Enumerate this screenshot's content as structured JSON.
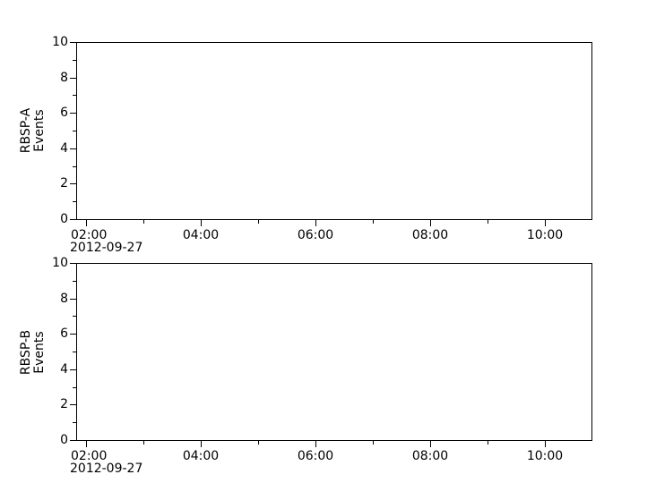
{
  "figure": {
    "background": "#ffffff",
    "axis_color": "#000000",
    "text_color": "#000000"
  },
  "chart_data": [
    {
      "type": "line",
      "title": "",
      "ylabel": "RBSP-A Events",
      "ylabel_lines": [
        "RBSP-A",
        "Events"
      ],
      "series": [],
      "x": {
        "date": "2012-09-27",
        "lim_min": [
          110,
          650
        ],
        "lim_label": [
          "01:50",
          "10:50"
        ],
        "major": [
          {
            "m": 120,
            "label": "02:00"
          },
          {
            "m": 240,
            "label": "04:00"
          },
          {
            "m": 360,
            "label": "06:00"
          },
          {
            "m": 480,
            "label": "08:00"
          },
          {
            "m": 600,
            "label": "10:00"
          }
        ],
        "minor_m": [
          180,
          300,
          420,
          540
        ]
      },
      "y": {
        "lim": [
          0,
          10
        ],
        "major": [
          {
            "v": 0,
            "label": "0"
          },
          {
            "v": 2,
            "label": "2"
          },
          {
            "v": 4,
            "label": "4"
          },
          {
            "v": 6,
            "label": "6"
          },
          {
            "v": 8,
            "label": "8"
          },
          {
            "v": 10,
            "label": "10"
          }
        ],
        "minor": [
          1,
          3,
          5,
          7,
          9
        ]
      }
    },
    {
      "type": "line",
      "title": "",
      "ylabel": "RBSP-B Events",
      "ylabel_lines": [
        "RBSP-B",
        "Events"
      ],
      "series": [],
      "x": {
        "date": "2012-09-27",
        "lim_min": [
          110,
          650
        ],
        "lim_label": [
          "01:50",
          "10:50"
        ],
        "major": [
          {
            "m": 120,
            "label": "02:00"
          },
          {
            "m": 240,
            "label": "04:00"
          },
          {
            "m": 360,
            "label": "06:00"
          },
          {
            "m": 480,
            "label": "08:00"
          },
          {
            "m": 600,
            "label": "10:00"
          }
        ],
        "minor_m": [
          180,
          300,
          420,
          540
        ]
      },
      "y": {
        "lim": [
          0,
          10
        ],
        "major": [
          {
            "v": 0,
            "label": "0"
          },
          {
            "v": 2,
            "label": "2"
          },
          {
            "v": 4,
            "label": "4"
          },
          {
            "v": 6,
            "label": "6"
          },
          {
            "v": 8,
            "label": "8"
          },
          {
            "v": 10,
            "label": "10"
          }
        ],
        "minor": [
          1,
          3,
          5,
          7,
          9
        ]
      }
    }
  ]
}
